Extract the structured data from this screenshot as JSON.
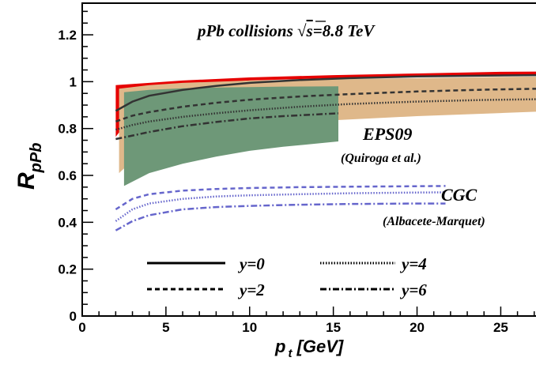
{
  "chart_data": {
    "type": "line",
    "title": "pPb collisions √s=8.8 TeV",
    "title_parts": {
      "prefix": "pPb collisions ",
      "sqrt": "√",
      "s": "s",
      "rest": "=8.8 TeV"
    },
    "xlabel": {
      "base": "p",
      "sub": "t",
      "unit": " [GeV]"
    },
    "ylabel": {
      "base": "R",
      "sub": "pPb"
    },
    "xlim": [
      0,
      27.2
    ],
    "ylim": [
      0,
      1.335
    ],
    "xticks": [
      0,
      5,
      10,
      15,
      20,
      25
    ],
    "yticks": [
      0,
      0.2,
      0.4,
      0.6,
      0.8,
      1,
      1.2
    ],
    "ytick_labels": [
      "0",
      "0.2",
      "0.4",
      "0.6",
      "0.8",
      "1",
      "1.2"
    ],
    "grid": false,
    "annotations": {
      "eps09": "EPS09",
      "eps09_ref": "(Quiroga et al.)",
      "cgc": "CGC",
      "cgc_ref": "(Albacete-Marquet)"
    },
    "legend": {
      "placement": "bottom-center",
      "entries": [
        {
          "label": "y=0",
          "style": "solid"
        },
        {
          "label": "y=2",
          "style": "dashed"
        },
        {
          "label": "y=4",
          "style": "dotted"
        },
        {
          "label": "y=6",
          "style": "dashdot"
        }
      ]
    },
    "colors": {
      "eps09_y0_band": "#e60000",
      "eps09_y2_band": "#dfb88a",
      "eps09_y6_band": "#6e9878",
      "eps09_curves": "#333333",
      "cgc_curves": "#6666cc"
    },
    "bands": [
      {
        "name": "EPS09 y=0 band",
        "color_key": "eps09_y0_band",
        "x": [
          2.0,
          4,
          6,
          10,
          15,
          20,
          25,
          27.2
        ],
        "upper": [
          0.985,
          0.995,
          1.005,
          1.018,
          1.028,
          1.035,
          1.042,
          1.043
        ],
        "lower": [
          0.765,
          0.95,
          0.985,
          1.005,
          1.015,
          1.02,
          1.025,
          1.027
        ]
      },
      {
        "name": "EPS09 y=2 band",
        "color_key": "eps09_y2_band",
        "x": [
          2.2,
          4,
          6,
          10,
          15,
          20,
          25,
          27.2
        ],
        "upper": [
          0.97,
          0.985,
          0.995,
          1.005,
          1.01,
          1.015,
          1.02,
          1.022
        ],
        "lower": [
          0.61,
          0.73,
          0.775,
          0.81,
          0.835,
          0.853,
          0.866,
          0.872
        ]
      },
      {
        "name": "EPS09 y=6 band",
        "color_key": "eps09_y6_band",
        "x": [
          2.5,
          4,
          6,
          8,
          10,
          12,
          15.3
        ],
        "upper": [
          0.955,
          0.965,
          0.972,
          0.975,
          0.977,
          0.979,
          0.98
        ],
        "lower": [
          0.555,
          0.61,
          0.65,
          0.68,
          0.705,
          0.722,
          0.745
        ]
      }
    ],
    "series": [
      {
        "name": "EPS09 y=0",
        "style": "solid",
        "color_key": "eps09_curves",
        "x": [
          2.0,
          3,
          4,
          6,
          8,
          10,
          13,
          16,
          20,
          24,
          27.2
        ],
        "y": [
          0.875,
          0.915,
          0.94,
          0.965,
          0.982,
          0.995,
          1.007,
          1.015,
          1.022,
          1.026,
          1.028
        ]
      },
      {
        "name": "EPS09 y=2",
        "style": "dashed",
        "color_key": "eps09_curves",
        "x": [
          2.0,
          3,
          4,
          6,
          8,
          10,
          13,
          16,
          20,
          24,
          27.2
        ],
        "y": [
          0.83,
          0.855,
          0.87,
          0.893,
          0.91,
          0.923,
          0.937,
          0.947,
          0.958,
          0.966,
          0.97
        ]
      },
      {
        "name": "EPS09 y=4",
        "style": "dotted",
        "color_key": "eps09_curves",
        "x": [
          2.0,
          3,
          4,
          6,
          8,
          10,
          13,
          16,
          20,
          24,
          27.2
        ],
        "y": [
          0.795,
          0.815,
          0.83,
          0.85,
          0.865,
          0.878,
          0.893,
          0.905,
          0.915,
          0.922,
          0.925
        ]
      },
      {
        "name": "EPS09 y=6",
        "style": "dashdot",
        "color_key": "eps09_curves",
        "x": [
          2.0,
          3,
          4,
          6,
          8,
          10,
          12,
          15.3
        ],
        "y": [
          0.755,
          0.77,
          0.785,
          0.81,
          0.828,
          0.843,
          0.853,
          0.865
        ]
      },
      {
        "name": "CGC y=2",
        "style": "dashed",
        "color_key": "cgc_curves",
        "x": [
          2.0,
          3,
          4,
          6,
          8,
          10,
          13,
          16,
          20,
          21.7
        ],
        "y": [
          0.455,
          0.5,
          0.52,
          0.535,
          0.542,
          0.546,
          0.55,
          0.552,
          0.554,
          0.555
        ]
      },
      {
        "name": "CGC y=4",
        "style": "dotted",
        "color_key": "cgc_curves",
        "x": [
          2.0,
          3,
          4,
          6,
          8,
          10,
          13,
          16,
          20,
          21.7
        ],
        "y": [
          0.405,
          0.455,
          0.48,
          0.5,
          0.51,
          0.515,
          0.52,
          0.524,
          0.527,
          0.528
        ]
      },
      {
        "name": "CGC y=6",
        "style": "dashdot",
        "color_key": "cgc_curves",
        "x": [
          2.0,
          3,
          4,
          6,
          8,
          10,
          13,
          16,
          20,
          21.7
        ],
        "y": [
          0.365,
          0.405,
          0.43,
          0.455,
          0.465,
          0.47,
          0.475,
          0.478,
          0.48,
          0.48
        ]
      }
    ]
  }
}
